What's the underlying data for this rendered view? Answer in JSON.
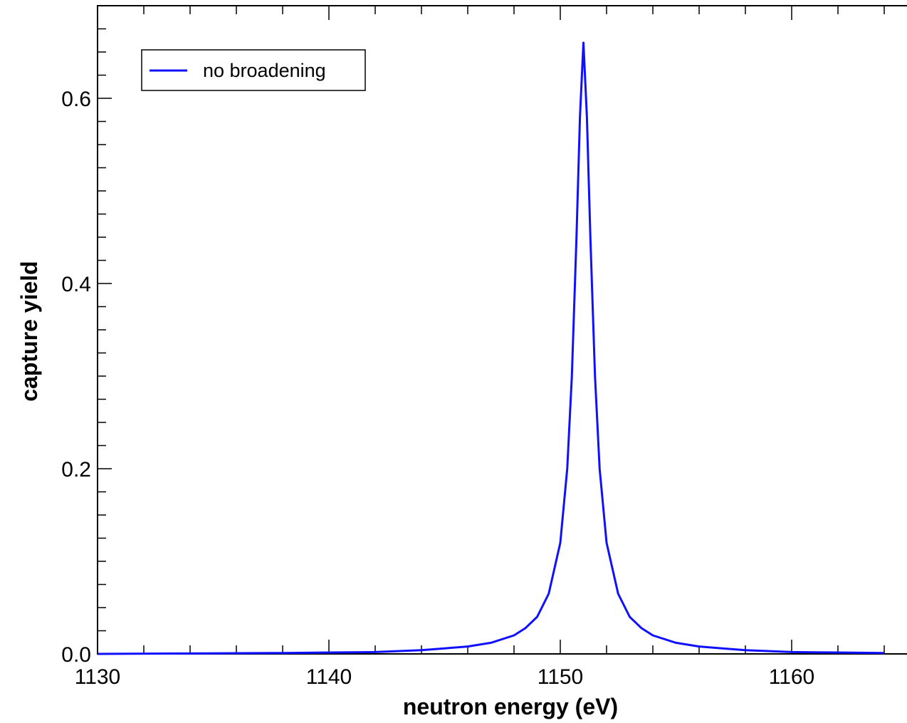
{
  "chart_data": {
    "type": "line",
    "xlabel": "neutron energy (eV)",
    "ylabel": "capture yield",
    "xlim": [
      1130,
      1164
    ],
    "ylim": [
      0,
      0.7
    ],
    "x_ticks": [
      "1130",
      "1140",
      "1150",
      "1160"
    ],
    "y_ticks": [
      "0.0",
      "0.2",
      "0.4",
      "0.6"
    ],
    "legend_position": "top-left",
    "grid": false,
    "series": [
      {
        "name": "no broadening",
        "color": "#1010ff",
        "x": [
          1130,
          1134,
          1138,
          1140,
          1142,
          1144,
          1145,
          1146,
          1147,
          1148,
          1148.5,
          1149,
          1149.5,
          1150,
          1150.3,
          1150.5,
          1150.7,
          1150.85,
          1151,
          1151.15,
          1151.3,
          1151.5,
          1151.7,
          1152,
          1152.5,
          1153,
          1153.5,
          1154,
          1155,
          1156,
          1157,
          1158,
          1160,
          1162,
          1164
        ],
        "y": [
          0.0,
          0.0005,
          0.001,
          0.0015,
          0.002,
          0.004,
          0.006,
          0.008,
          0.012,
          0.02,
          0.028,
          0.04,
          0.065,
          0.12,
          0.2,
          0.3,
          0.45,
          0.58,
          0.66,
          0.58,
          0.45,
          0.3,
          0.2,
          0.12,
          0.065,
          0.04,
          0.028,
          0.02,
          0.012,
          0.008,
          0.006,
          0.004,
          0.002,
          0.0015,
          0.001
        ]
      }
    ]
  }
}
